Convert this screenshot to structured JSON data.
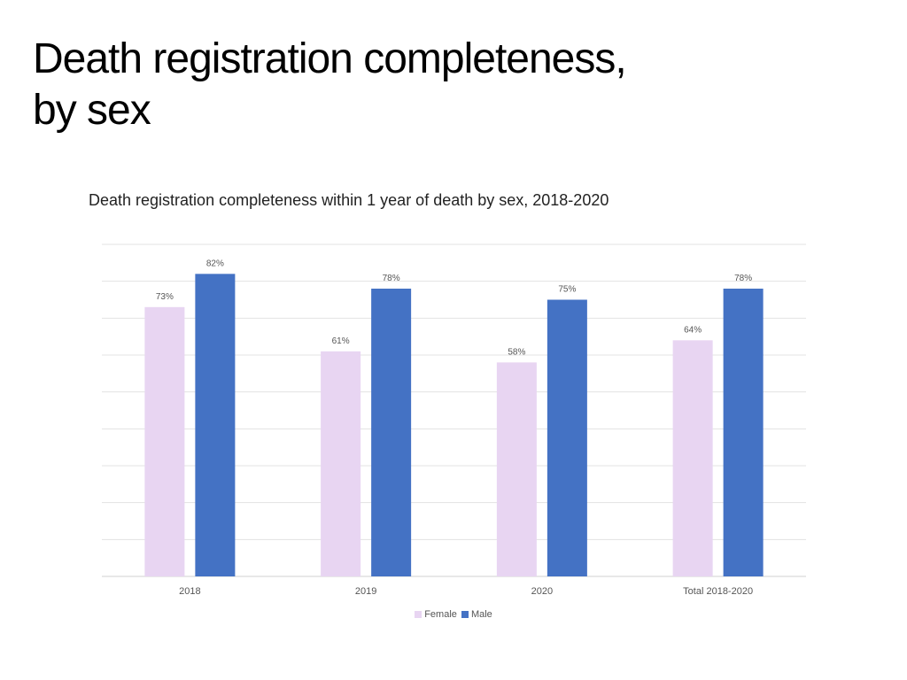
{
  "slide": {
    "title_line1": "Death registration completeness,",
    "title_line2": "by sex"
  },
  "chart_data": {
    "type": "bar",
    "title": "Death registration completeness within 1 year of death by sex, 2018-2020",
    "categories": [
      "2018",
      "2019",
      "2020",
      "Total 2018-2020"
    ],
    "series": [
      {
        "name": "Female",
        "values": [
          73,
          61,
          58,
          64
        ],
        "labels": [
          "73%",
          "61%",
          "58%",
          "64%"
        ],
        "color": "#E8D5F2"
      },
      {
        "name": "Male",
        "values": [
          82,
          78,
          75,
          78
        ],
        "labels": [
          "82%",
          "78%",
          "75%",
          "78%"
        ],
        "color": "#4472C4"
      }
    ],
    "ylim": [
      0,
      90
    ],
    "grid": true,
    "legend_position": "bottom"
  }
}
